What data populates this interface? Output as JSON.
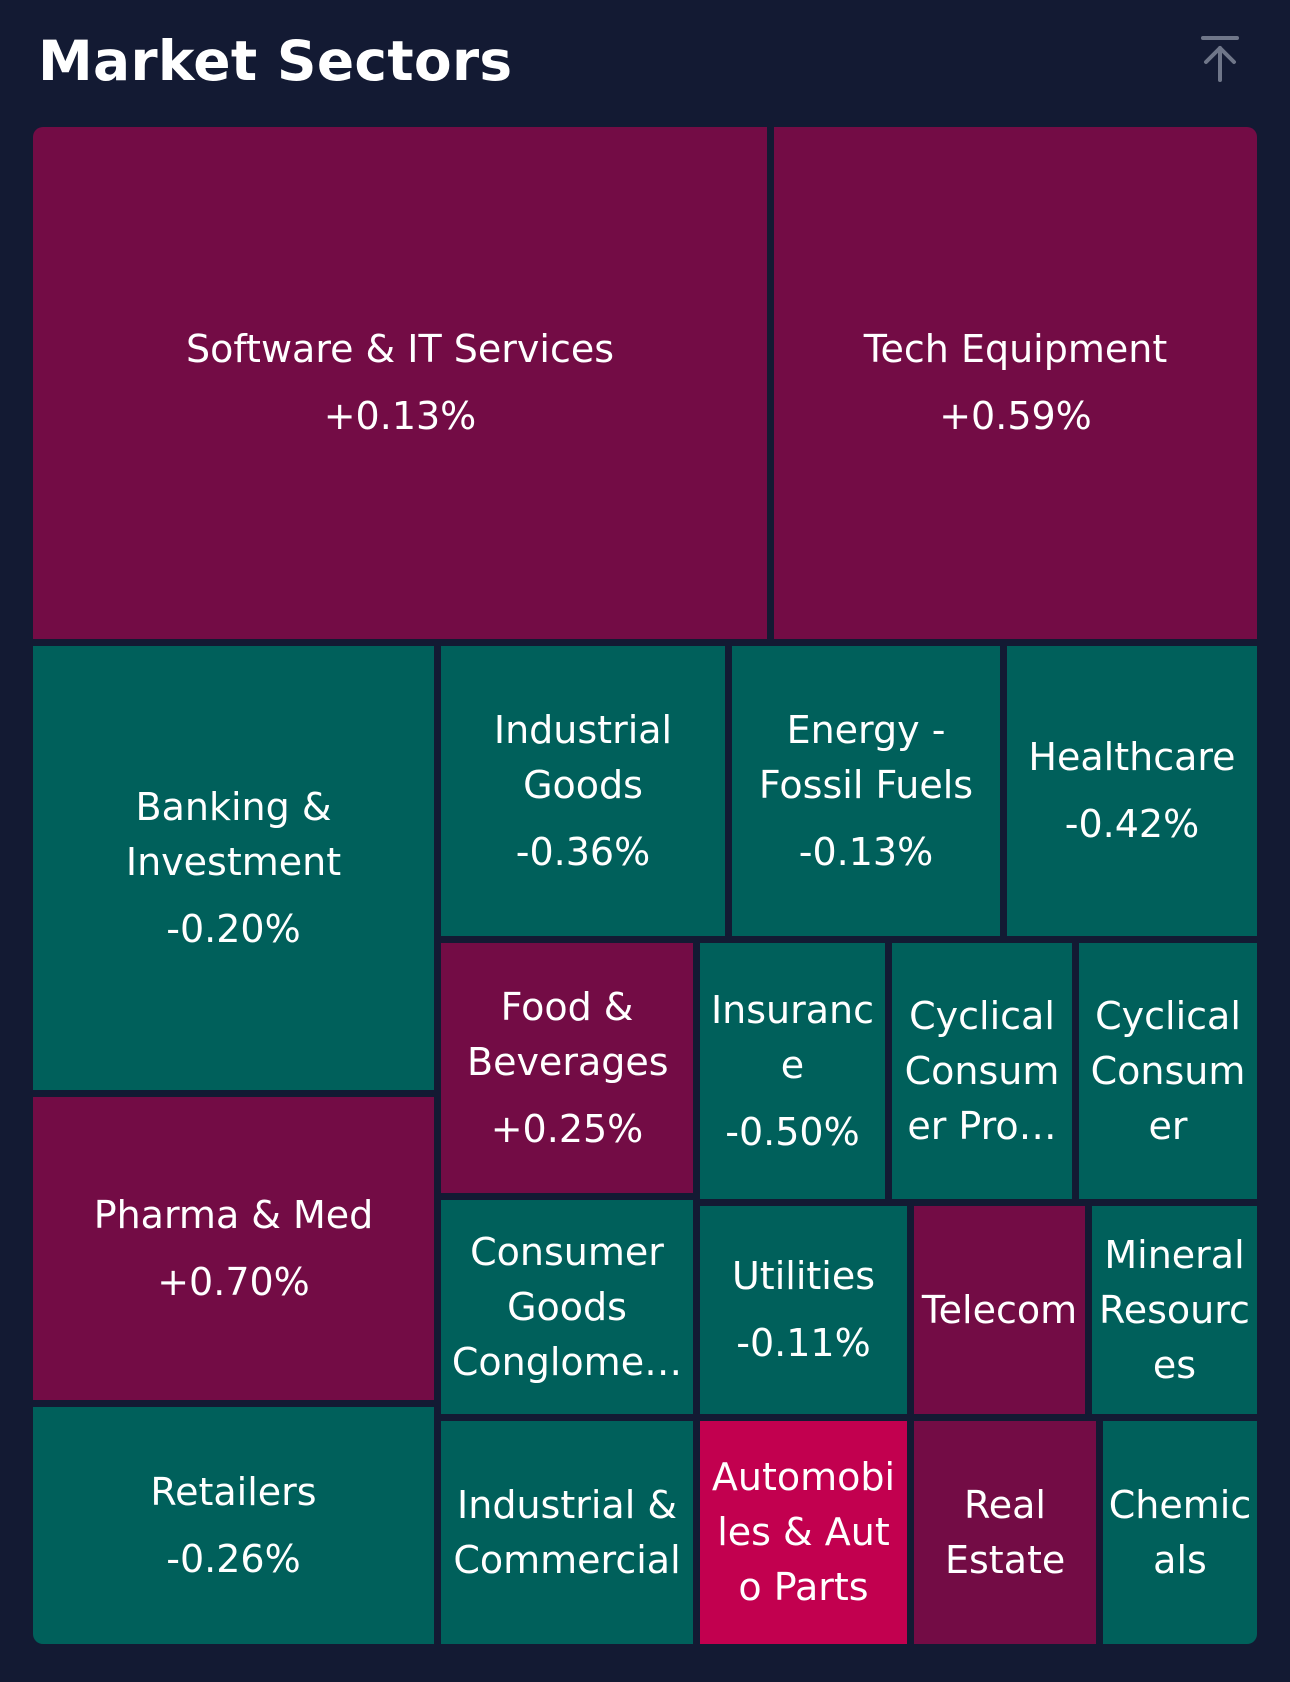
{
  "header": {
    "title": "Market Sectors",
    "scroll_top_icon": "arrow-up-to-top-icon"
  },
  "colors": {
    "background": "#131a33",
    "positive": "#730c45",
    "negative": "#00605b",
    "strong_positive": "#c2004f"
  },
  "sectors": [
    {
      "name": "Software & IT Services",
      "change": "+0.13%"
    },
    {
      "name": "Tech Equipment",
      "change": "+0.59%"
    },
    {
      "name": "Banking & Investment",
      "change": "-0.20%"
    },
    {
      "name": "Industrial Goods",
      "change": "-0.36%"
    },
    {
      "name": "Energy - Fossil Fuels",
      "change": "-0.13%"
    },
    {
      "name": "Healthcare",
      "change": "-0.42%"
    },
    {
      "name": "Pharma & Med",
      "change": "+0.70%"
    },
    {
      "name": "Food & Beverages",
      "change": "+0.25%"
    },
    {
      "name": "Insurance",
      "change": "-0.50%"
    },
    {
      "name": "Cyclical Consumer Pro…",
      "change": ""
    },
    {
      "name": "Cyclical Consumer",
      "change": ""
    },
    {
      "name": "Consumer Goods Conglome…",
      "change": ""
    },
    {
      "name": "Utilities",
      "change": "-0.11%"
    },
    {
      "name": "Telecom",
      "change": ""
    },
    {
      "name": "Mineral Resources",
      "change": ""
    },
    {
      "name": "Retailers",
      "change": "-0.26%"
    },
    {
      "name": "Industrial & Commercial",
      "change": ""
    },
    {
      "name": "Automobiles & Auto Parts",
      "change": ""
    },
    {
      "name": "Real Estate",
      "change": ""
    },
    {
      "name": "Chemicals",
      "change": ""
    }
  ]
}
